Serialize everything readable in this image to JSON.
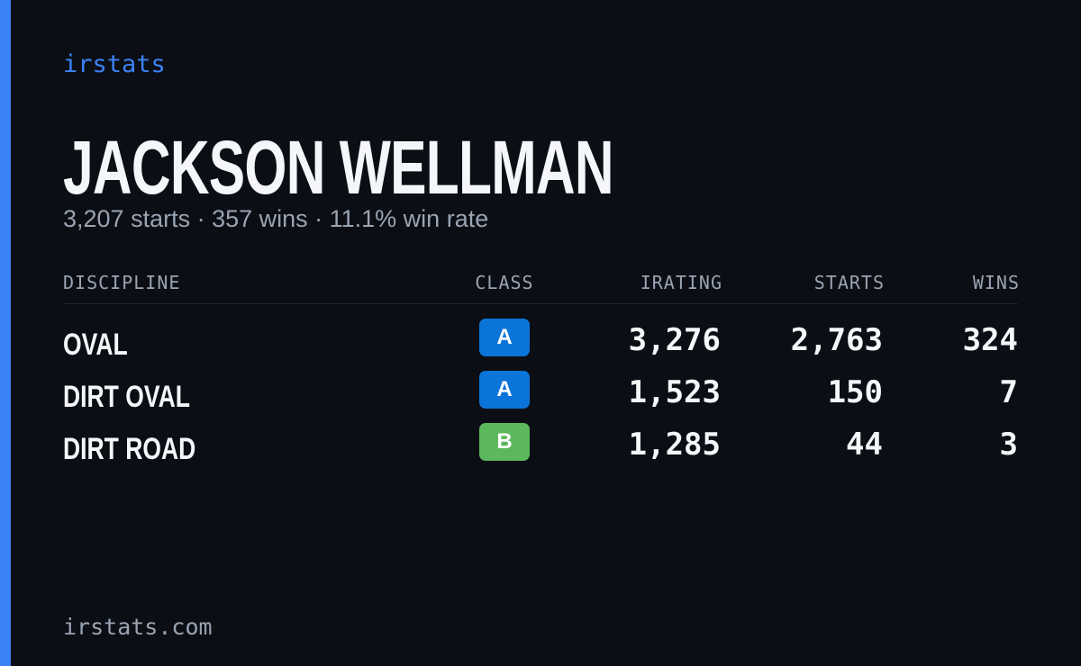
{
  "brand": "irstats",
  "header": {
    "name": "JACKSON WELLMAN",
    "summary": "3,207 starts · 357 wins · 11.1% win rate"
  },
  "table": {
    "columns": [
      "DISCIPLINE",
      "CLASS",
      "IRATING",
      "STARTS",
      "WINS"
    ],
    "rows": [
      {
        "discipline": "OVAL",
        "class": "A",
        "class_color": "#0b74d9",
        "irating": "3,276",
        "starts": "2,763",
        "wins": "324"
      },
      {
        "discipline": "DIRT OVAL",
        "class": "A",
        "class_color": "#0b74d9",
        "irating": "1,523",
        "starts": "150",
        "wins": "7"
      },
      {
        "discipline": "DIRT ROAD",
        "class": "B",
        "class_color": "#5cb85c",
        "irating": "1,285",
        "starts": "44",
        "wins": "3"
      }
    ]
  },
  "footer": "irstats.com"
}
